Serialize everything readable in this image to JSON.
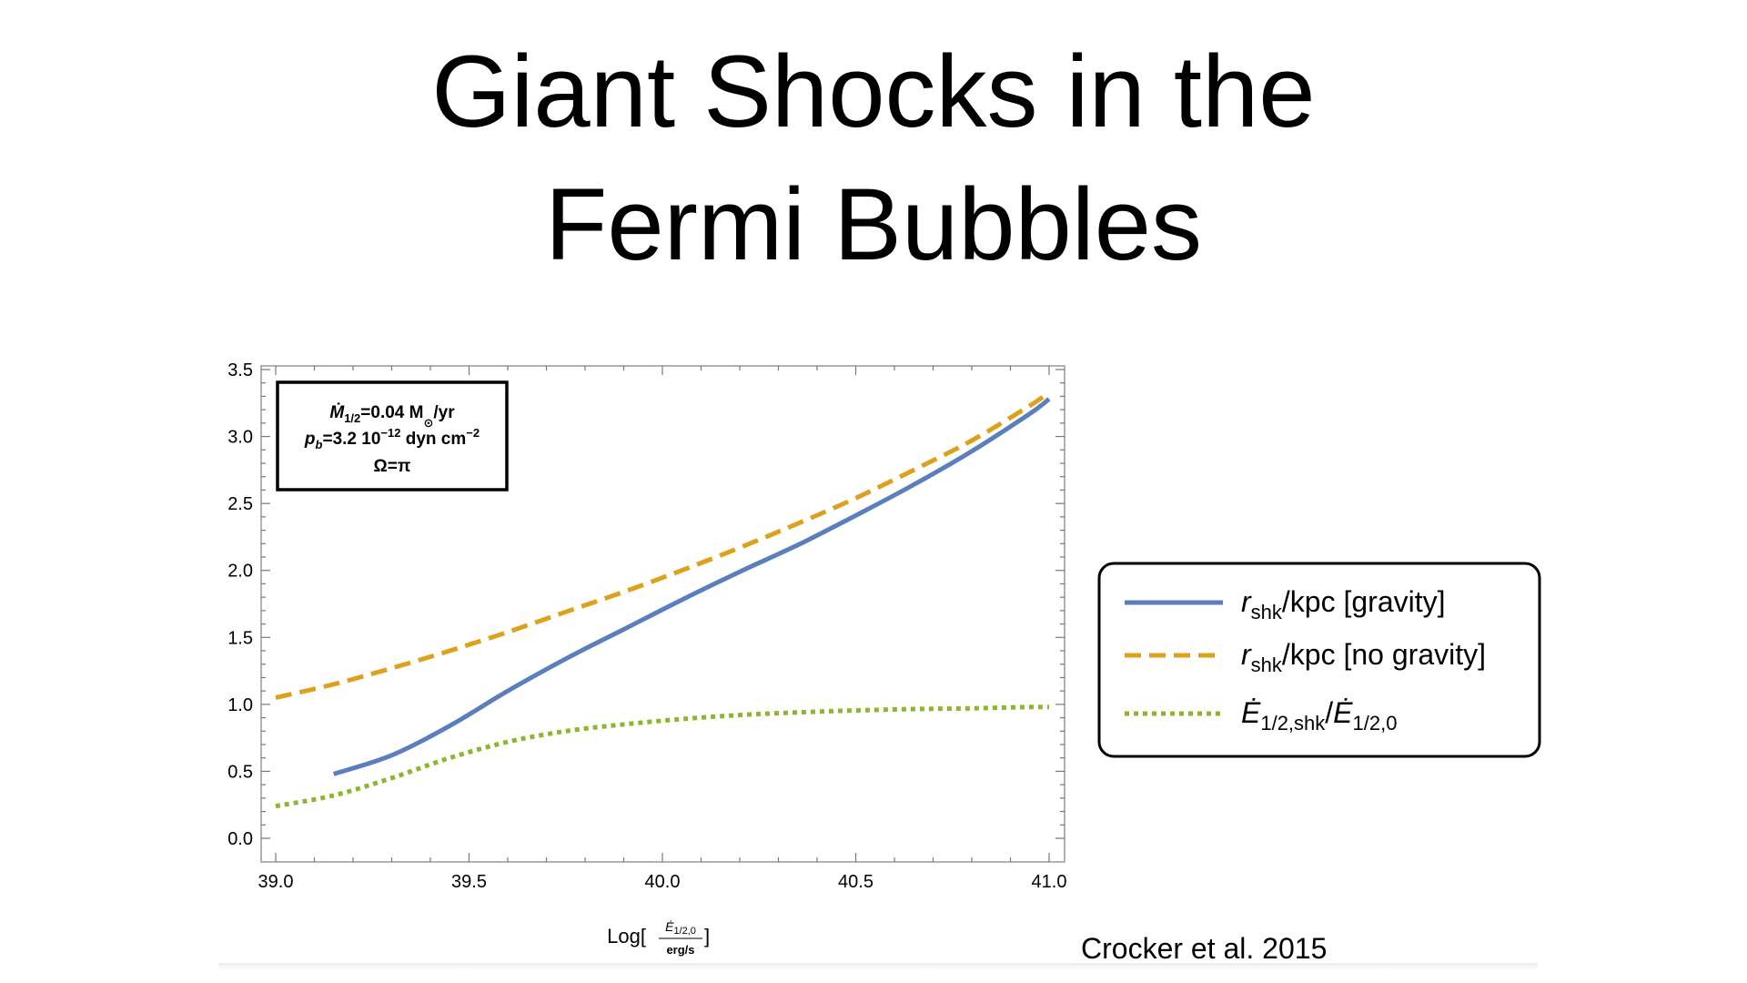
{
  "slide": {
    "title_line1": "Giant Shocks in the",
    "title_line2": "Fermi Bubbles",
    "citation": "Crocker et al. 2015"
  },
  "chart_data": {
    "type": "line",
    "xlim": [
      39.0,
      41.0
    ],
    "ylim": [
      0.0,
      3.5
    ],
    "x_ticks": [
      "39.0",
      "39.5",
      "40.0",
      "40.5",
      "41.0"
    ],
    "y_ticks": [
      "0.0",
      "0.5",
      "1.0",
      "1.5",
      "2.0",
      "2.5",
      "3.0",
      "3.5"
    ],
    "xlabel": {
      "prefix": "Log[",
      "numerator": "Ė",
      "numerator_sub": "1/2,0",
      "denominator": "erg/s",
      "suffix": "]"
    },
    "ylabel": "",
    "grid": false,
    "info_box": {
      "line1_main": "Ṁ",
      "line1_sub": "1/2",
      "line1_rest": "=0.04 M",
      "line1_sun": "⊙",
      "line1_unit": "/yr",
      "line2_main": "p",
      "line2_sub": "b",
      "line2_rest": "=3.2 10",
      "line2_exp": "−12",
      "line2_unit": " dyn cm",
      "line2_unit_exp": "−2",
      "line3": "Ω=π"
    },
    "legend_position": "right",
    "series": [
      {
        "name_main": "r",
        "name_sub": "shk",
        "name_rest": "/kpc [gravity]",
        "color": "#5b7fbd",
        "style": "solid",
        "x": [
          39.15,
          39.3,
          39.45,
          39.6,
          39.75,
          39.9,
          40.05,
          40.2,
          40.35,
          40.5,
          40.65,
          40.8,
          40.95,
          41.0
        ],
        "y": [
          0.48,
          0.62,
          0.84,
          1.1,
          1.34,
          1.56,
          1.78,
          1.99,
          2.19,
          2.41,
          2.64,
          2.89,
          3.17,
          3.28
        ]
      },
      {
        "name_main": "r",
        "name_sub": "shk",
        "name_rest": "/kpc [no gravity]",
        "color": "#dca21d",
        "style": "dashed",
        "x": [
          39.0,
          39.15,
          39.3,
          39.45,
          39.6,
          39.75,
          39.9,
          40.05,
          40.2,
          40.35,
          40.5,
          40.65,
          40.8,
          40.95,
          41.0
        ],
        "y": [
          1.05,
          1.15,
          1.27,
          1.4,
          1.54,
          1.69,
          1.84,
          2.0,
          2.17,
          2.35,
          2.54,
          2.75,
          2.97,
          3.23,
          3.33
        ]
      },
      {
        "name_main": "Ė",
        "name_sub": "1/2,shk",
        "name_sep": "/",
        "name_main2": "Ė",
        "name_sub2": "1/2,0",
        "color": "#8db52d",
        "style": "dotted",
        "x": [
          39.0,
          39.15,
          39.3,
          39.45,
          39.6,
          39.75,
          39.9,
          40.05,
          40.2,
          40.35,
          40.5,
          40.65,
          40.8,
          40.95,
          41.0
        ],
        "y": [
          0.24,
          0.32,
          0.45,
          0.6,
          0.72,
          0.8,
          0.85,
          0.89,
          0.92,
          0.94,
          0.955,
          0.965,
          0.97,
          0.98,
          0.98
        ]
      }
    ]
  }
}
